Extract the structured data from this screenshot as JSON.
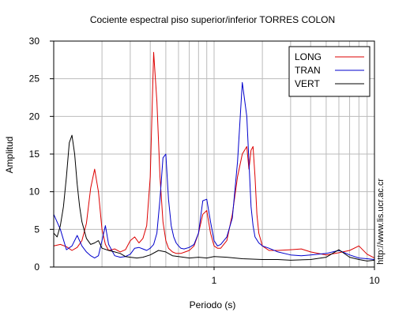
{
  "watermark": "http://www.lis.ucr.ac.cr",
  "chart_data": {
    "type": "line",
    "title": "Cociente espectral piso superior/inferior  TORRES COLON",
    "xlabel": "Periodo (s)",
    "ylabel": "Amplitud",
    "xscale": "log",
    "xlim": [
      0.1,
      10
    ],
    "ylim": [
      0,
      30
    ],
    "yticks": [
      0,
      5,
      10,
      15,
      20,
      25,
      30
    ],
    "xticks_labeled": [
      {
        "value": 1,
        "label": "1"
      },
      {
        "value": 10,
        "label": "10"
      }
    ],
    "grid": true,
    "legend_position": "top-right",
    "series": [
      {
        "name": "LONG",
        "color": "#dd0000",
        "x": [
          0.1,
          0.11,
          0.12,
          0.13,
          0.14,
          0.15,
          0.16,
          0.17,
          0.18,
          0.19,
          0.2,
          0.21,
          0.22,
          0.24,
          0.26,
          0.28,
          0.3,
          0.32,
          0.34,
          0.36,
          0.38,
          0.4,
          0.42,
          0.44,
          0.46,
          0.48,
          0.5,
          0.52,
          0.55,
          0.58,
          0.62,
          0.66,
          0.7,
          0.75,
          0.8,
          0.85,
          0.9,
          0.95,
          1.0,
          1.05,
          1.1,
          1.2,
          1.3,
          1.4,
          1.5,
          1.6,
          1.65,
          1.7,
          1.75,
          1.8,
          1.85,
          1.9,
          2.0,
          2.2,
          2.5,
          3.0,
          3.5,
          4.0,
          5.0,
          6.0,
          7.0,
          8.0,
          9.0,
          10.0
        ],
        "y": [
          2.8,
          3.0,
          2.7,
          2.2,
          2.6,
          3.5,
          5.8,
          10.5,
          13.0,
          10.0,
          5.0,
          3.0,
          2.2,
          2.4,
          2.0,
          2.3,
          3.5,
          4.0,
          3.2,
          3.8,
          5.5,
          12.0,
          28.5,
          22.0,
          12.0,
          6.0,
          3.5,
          2.5,
          2.0,
          1.8,
          1.8,
          2.0,
          2.2,
          2.8,
          4.5,
          7.0,
          7.5,
          4.5,
          2.8,
          2.5,
          2.5,
          3.5,
          7.0,
          12.0,
          15.0,
          16.0,
          13.0,
          15.5,
          16.0,
          12.0,
          7.0,
          4.5,
          2.8,
          2.2,
          2.2,
          2.3,
          2.4,
          2.0,
          1.6,
          1.9,
          2.2,
          2.8,
          1.7,
          1.2
        ]
      },
      {
        "name": "TRAN",
        "color": "#0000cc",
        "x": [
          0.1,
          0.11,
          0.12,
          0.13,
          0.14,
          0.15,
          0.16,
          0.17,
          0.18,
          0.19,
          0.2,
          0.21,
          0.22,
          0.24,
          0.26,
          0.28,
          0.3,
          0.32,
          0.34,
          0.36,
          0.38,
          0.4,
          0.42,
          0.44,
          0.46,
          0.48,
          0.5,
          0.52,
          0.54,
          0.56,
          0.58,
          0.6,
          0.62,
          0.65,
          0.7,
          0.75,
          0.8,
          0.85,
          0.9,
          0.95,
          1.0,
          1.05,
          1.1,
          1.2,
          1.3,
          1.4,
          1.5,
          1.6,
          1.65,
          1.7,
          1.75,
          1.8,
          1.9,
          2.0,
          2.2,
          2.5,
          3.0,
          3.5,
          4.0,
          5.0,
          6.0,
          7.0,
          8.0,
          9.0,
          10.0
        ],
        "y": [
          7.0,
          5.0,
          2.3,
          2.8,
          4.2,
          2.8,
          2.0,
          1.5,
          1.2,
          1.5,
          3.5,
          5.5,
          3.0,
          1.5,
          1.3,
          1.4,
          1.7,
          2.5,
          2.6,
          2.4,
          2.2,
          2.5,
          3.0,
          4.5,
          9.0,
          14.5,
          15.0,
          9.0,
          5.5,
          4.0,
          3.2,
          2.8,
          2.5,
          2.4,
          2.6,
          3.0,
          4.5,
          8.8,
          9.0,
          6.0,
          3.5,
          2.8,
          3.0,
          4.0,
          6.5,
          14.0,
          24.5,
          20.0,
          14.0,
          8.0,
          5.5,
          4.0,
          3.2,
          2.8,
          2.5,
          2.0,
          1.6,
          1.5,
          1.6,
          1.8,
          2.2,
          1.6,
          1.2,
          1.1,
          1.0
        ]
      },
      {
        "name": "VERT",
        "color": "#000000",
        "x": [
          0.1,
          0.105,
          0.11,
          0.115,
          0.12,
          0.125,
          0.13,
          0.135,
          0.14,
          0.145,
          0.15,
          0.16,
          0.17,
          0.18,
          0.19,
          0.2,
          0.22,
          0.24,
          0.26,
          0.28,
          0.3,
          0.33,
          0.36,
          0.4,
          0.45,
          0.5,
          0.55,
          0.6,
          0.7,
          0.8,
          0.9,
          1.0,
          1.2,
          1.5,
          2.0,
          2.5,
          3.0,
          4.0,
          5.0,
          6.0,
          7.0,
          8.0,
          9.0,
          10.0
        ],
        "y": [
          4.5,
          4.0,
          5.5,
          8.0,
          12.0,
          16.5,
          17.5,
          15.0,
          11.0,
          8.0,
          6.0,
          3.8,
          3.0,
          3.2,
          3.5,
          2.5,
          2.2,
          2.0,
          1.8,
          1.4,
          1.3,
          1.2,
          1.3,
          1.6,
          2.2,
          2.0,
          1.5,
          1.4,
          1.2,
          1.3,
          1.2,
          1.4,
          1.3,
          1.1,
          1.0,
          1.0,
          0.9,
          1.0,
          1.3,
          2.3,
          1.3,
          1.0,
          0.8,
          0.9
        ]
      }
    ]
  }
}
